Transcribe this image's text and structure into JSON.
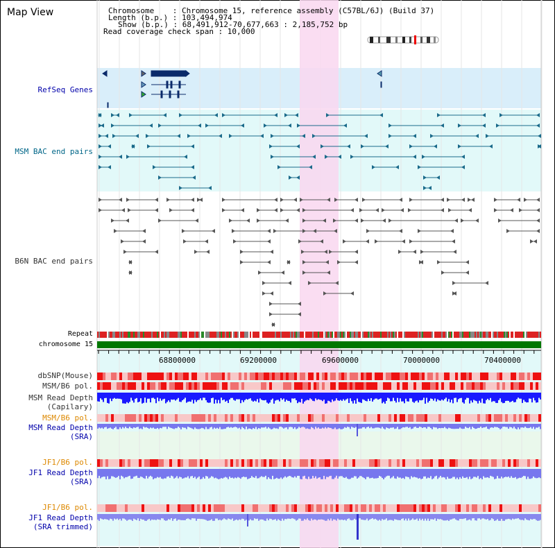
{
  "header": {
    "view_title": "Map View",
    "chromosome_label": "Chromosome    : Chromosome 15, reference assembly (C57BL/6J) (Build 37)",
    "length_label": "Length (b.p.) : 103,494,974",
    "show_label": "Show (b.p.) : 68,491,912-70,677,663 : 2,185,752 bp",
    "coverage_label": "Read coverage check span : 10,000"
  },
  "tracks": {
    "refseq": "RefSeq Genes",
    "msm_bac": "MSM BAC end pairs",
    "b6n_bac": "B6N BAC end pairs",
    "repeat": "Repeat",
    "chromosome": "chromosome 15",
    "dbsnp": "dbSNP(Mouse)",
    "msm_pol": "MSM/B6 pol.",
    "msm_depth_cap_1": "MSM Read Depth",
    "msm_depth_cap_2": "(Capilary)",
    "msm_pol_2": "MSM/B6 pol.",
    "msm_depth_sra_1": "MSM Read Depth",
    "msm_depth_sra_2": "(SRA)",
    "jf1_pol": "JF1/B6 pol.",
    "jf1_depth_1": "JF1 Read Depth",
    "jf1_depth_2": "(SRA)",
    "jf1_pol_2": "JF1/B6 pol.",
    "jf1_trim_1": "JF1 Read Depth",
    "jf1_trim_2": "(SRA trimmed)"
  },
  "axis": {
    "ticks": [
      "68800000",
      "69200000",
      "69600000",
      "70000000",
      "70400000"
    ]
  },
  "colors": {
    "highlight": "#f9d7f0",
    "refseq_bg": "#d9eefa",
    "bac_bg": "#e2f9f9",
    "chromosome_bar": "#007700",
    "depth_blue": "#1a1aff",
    "depth_light_blue": "#7777ee",
    "snp_red": "#ee3333"
  }
}
